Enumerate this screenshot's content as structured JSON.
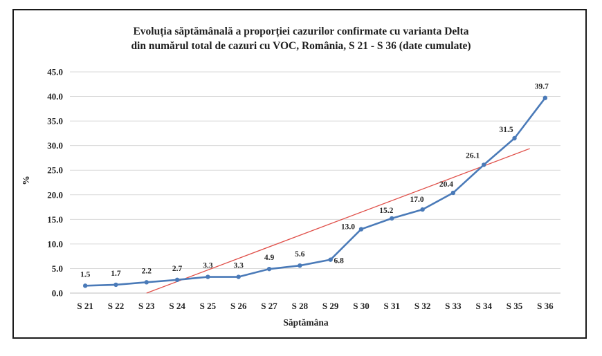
{
  "chart_data": {
    "type": "line",
    "title": "Evoluția săptămânală a proporției cazurilor confirmate cu varianta Delta",
    "subtitle": "din numărul total de cazuri cu VOC, România, S 21 - S 36 (date cumulate)",
    "xlabel": "Săptămâna",
    "ylabel": "%",
    "categories": [
      "S 21",
      "S 22",
      "S 23",
      "S 24",
      "S 25",
      "S 26",
      "S 27",
      "S 28",
      "S 29",
      "S 30",
      "S 31",
      "S 32",
      "S 33",
      "S 34",
      "S 35",
      "S 36"
    ],
    "y_ticks": [
      "0.0",
      "5.0",
      "10.0",
      "15.0",
      "20.0",
      "25.0",
      "30.0",
      "35.0",
      "40.0",
      "45.0"
    ],
    "ylim": [
      0,
      45
    ],
    "grid": true,
    "legend": "none",
    "series": [
      {
        "values": [
          1.5,
          1.7,
          2.2,
          2.7,
          3.3,
          3.3,
          4.9,
          5.6,
          6.8,
          13.0,
          15.2,
          17.0,
          20.4,
          26.1,
          31.5,
          39.7
        ],
        "labels": [
          "1.5",
          "1.7",
          "2.2",
          "2.7",
          "3.3",
          "3.3",
          "4.9",
          "5.6",
          "6.8",
          "13.0",
          "15.2",
          "17.0",
          "20.4",
          "26.1",
          "31.5",
          "39.7"
        ],
        "color": "#4a7ab8"
      }
    ],
    "trendline": {
      "type": "linear",
      "color": "#e0504a",
      "start": [
        2.5,
        0
      ],
      "end": [
        15,
        29.4
      ]
    }
  }
}
